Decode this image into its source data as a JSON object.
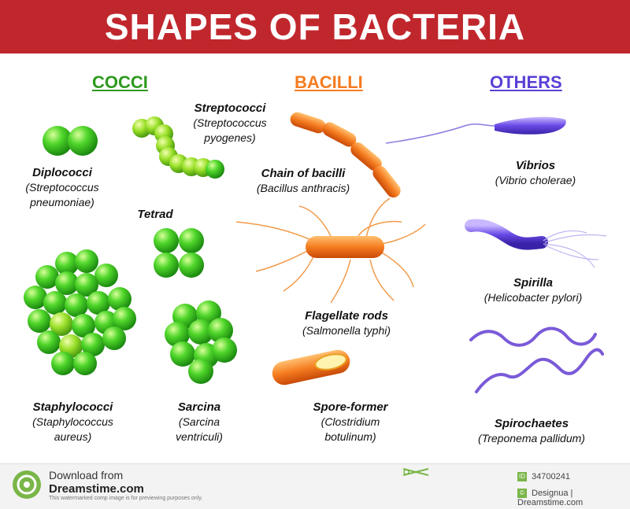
{
  "title": "SHAPES OF BACTERIA",
  "headings": {
    "cocci": "COCCI",
    "bacilli": "BACILLI",
    "others": "OTHERS"
  },
  "labels": {
    "streptococci": {
      "name": "Streptococci",
      "species_1": "(Streptococcus",
      "species_2": "pyogenes)"
    },
    "diplococci": {
      "name": "Diplococci",
      "species_1": "(Streptococcus",
      "species_2": "pneumoniae)"
    },
    "tetrad": {
      "name": "Tetrad"
    },
    "staphylococci": {
      "name": "Staphylococci",
      "species_1": "(Staphylococcus",
      "species_2": "aureus)"
    },
    "sarcina": {
      "name": "Sarcina",
      "species_1": "(Sarcina",
      "species_2": "ventriculi)"
    },
    "chain_of_bacilli": {
      "name": "Chain of bacilli",
      "species_1": "(Bacillus anthracis)"
    },
    "flagellate_rods": {
      "name": "Flagellate rods",
      "species_1": "(Salmonella typhi)"
    },
    "spore_former": {
      "name": "Spore-former",
      "species_1": "(Clostridium",
      "species_2": "botulinum)"
    },
    "vibrios": {
      "name": "Vibrios",
      "species_1": "(Vibrio cholerae)"
    },
    "spirilla": {
      "name": "Spirilla",
      "species_1": "(Helicobacter pylori)"
    },
    "spirochaetes": {
      "name": "Spirochaetes",
      "species_1": "(Treponema pallidum)"
    }
  },
  "footer": {
    "download": "Download from",
    "site": "Dreamstime.com",
    "note": "This watermarked comp image is for previewing purposes only.",
    "image_id": "34700241",
    "credit": "Designua | Dreamstime.com"
  },
  "colors": {
    "banner": "#c0272d",
    "cocci": "#2e9a1e",
    "bacilli": "#f57c20",
    "others": "#5b3fd6"
  }
}
